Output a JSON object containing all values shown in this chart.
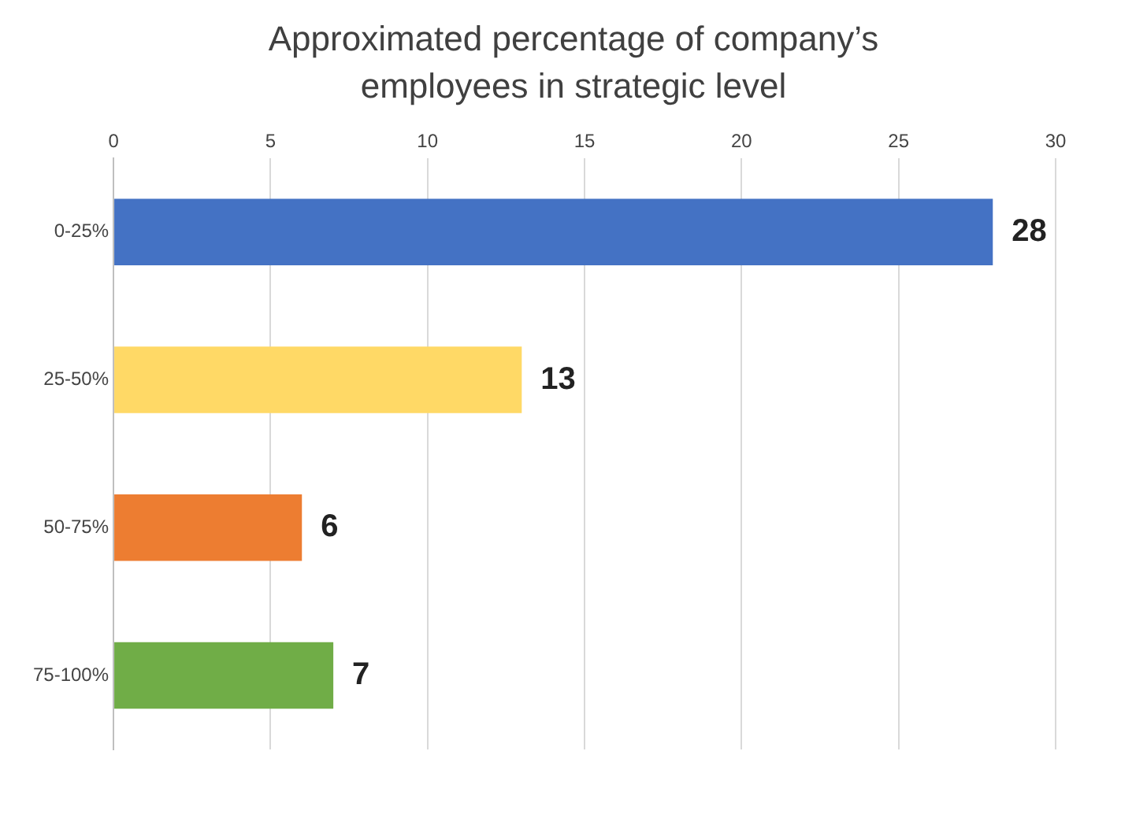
{
  "chart_data": {
    "type": "bar",
    "orientation": "horizontal",
    "title": "Approximated percentage of  company’s employees in strategic level",
    "categories": [
      "0-25%",
      "25-50%",
      "50-75%",
      "75-100%"
    ],
    "values": [
      28,
      13,
      6,
      7
    ],
    "colors": [
      "#4472c4",
      "#ffd966",
      "#ed7d31",
      "#70ad47"
    ],
    "xlim": [
      0,
      30
    ],
    "xticks": [
      0,
      5,
      10,
      15,
      20,
      25,
      30
    ],
    "grid": "x",
    "data_labels": true
  }
}
